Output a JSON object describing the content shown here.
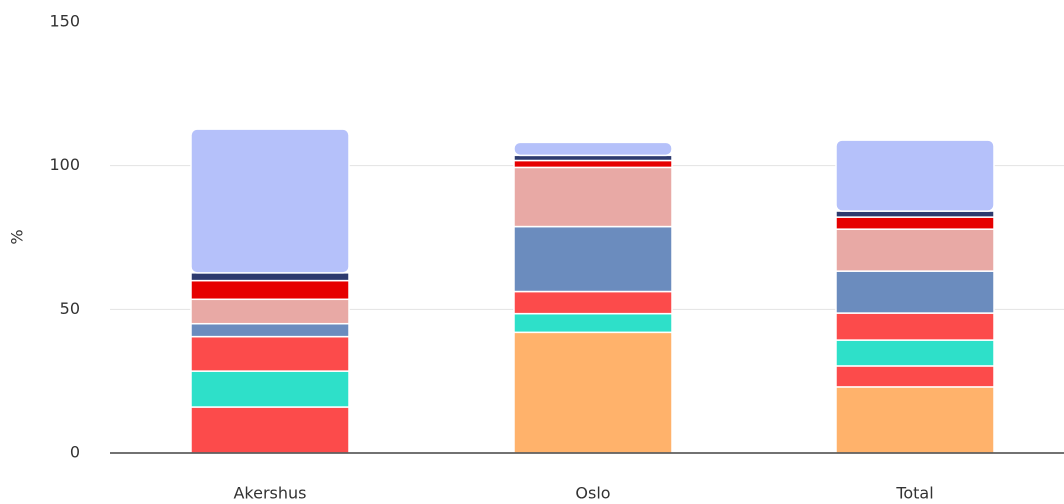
{
  "chart_data": {
    "type": "stacked_bar",
    "y_label": "%",
    "categories": [
      "Akershus",
      "Oslo",
      "Total"
    ],
    "series": [
      {
        "color": "#ffb26b",
        "values": [
          0,
          42,
          23
        ]
      },
      {
        "color": "#fc4b4b",
        "values": [
          16,
          0,
          7.3
        ]
      },
      {
        "color": "#2ee0c9",
        "values": [
          12.5,
          6.5,
          9
        ]
      },
      {
        "color": "#fc4b4b",
        "values": [
          12,
          7.7,
          9.4
        ]
      },
      {
        "color": "#6b8cbe",
        "values": [
          4.5,
          22.6,
          14.6
        ]
      },
      {
        "color": "#e8a9a5",
        "values": [
          8.5,
          20.6,
          14.6
        ]
      },
      {
        "color": "#e60000",
        "values": [
          6.5,
          2.4,
          4.2
        ]
      },
      {
        "color": "#2d3a6e",
        "values": [
          2.7,
          1.8,
          2.1
        ]
      },
      {
        "color": "#b5c1fa",
        "values": [
          50,
          4.5,
          24.7
        ]
      }
    ],
    "ylim": [
      0,
      150
    ],
    "yticks": [
      0,
      50,
      100,
      150
    ],
    "grid": true
  }
}
